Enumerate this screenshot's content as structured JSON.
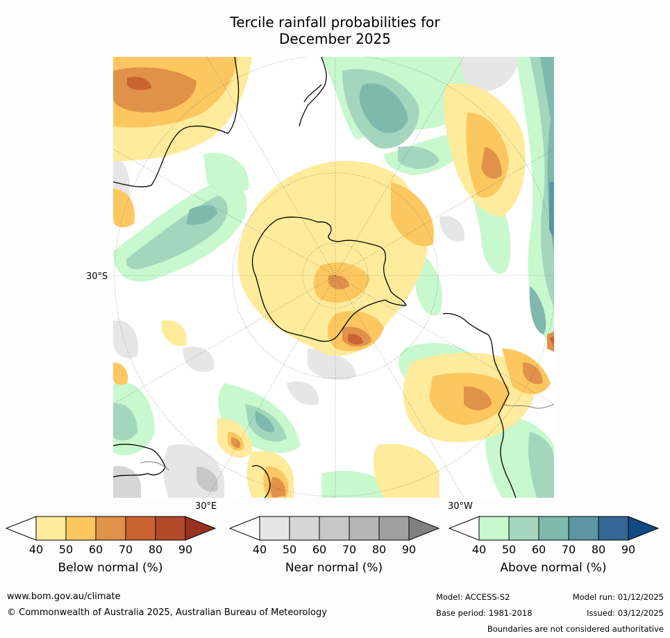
{
  "title": {
    "line1": "Tercile rainfall probabilities for",
    "line2": "December 2025"
  },
  "map": {
    "projection": "south polar stereographic",
    "labels": {
      "lat": "30°S",
      "lon_east": "30°E",
      "lon_west": "30°W"
    }
  },
  "legends": [
    {
      "title": "Below normal (%)",
      "ticks": [
        "40",
        "50",
        "60",
        "70",
        "80",
        "90"
      ],
      "colors": [
        "#ffffff",
        "#ffeb9c",
        "#fdc760",
        "#e0914a",
        "#cb6231",
        "#b04a27",
        "#98311f"
      ]
    },
    {
      "title": "Near normal (%)",
      "ticks": [
        "40",
        "50",
        "60",
        "70",
        "80",
        "90"
      ],
      "colors": [
        "#ffffff",
        "#e6e6e6",
        "#d6d6d6",
        "#c8c8c8",
        "#b5b5b5",
        "#a0a0a0",
        "#808080"
      ]
    },
    {
      "title": "Above normal (%)",
      "ticks": [
        "40",
        "50",
        "60",
        "70",
        "80",
        "90"
      ],
      "colors": [
        "#ffffff",
        "#c8f8cd",
        "#a3d6bd",
        "#7fb8ad",
        "#5b96a2",
        "#356797",
        "#124a84"
      ]
    }
  ],
  "footer": {
    "url": "www.bom.gov.au/climate",
    "copyright": "© Commonwealth of Australia 2025, Australian Bureau of Meteorology",
    "model": "Model: ACCESS-S2",
    "base_period": "Base period: 1981-2018",
    "model_run": "Model run: 01/12/2025",
    "issued": "Issued: 03/12/2025",
    "disclaimer": "Boundaries are not considered authoritative"
  }
}
